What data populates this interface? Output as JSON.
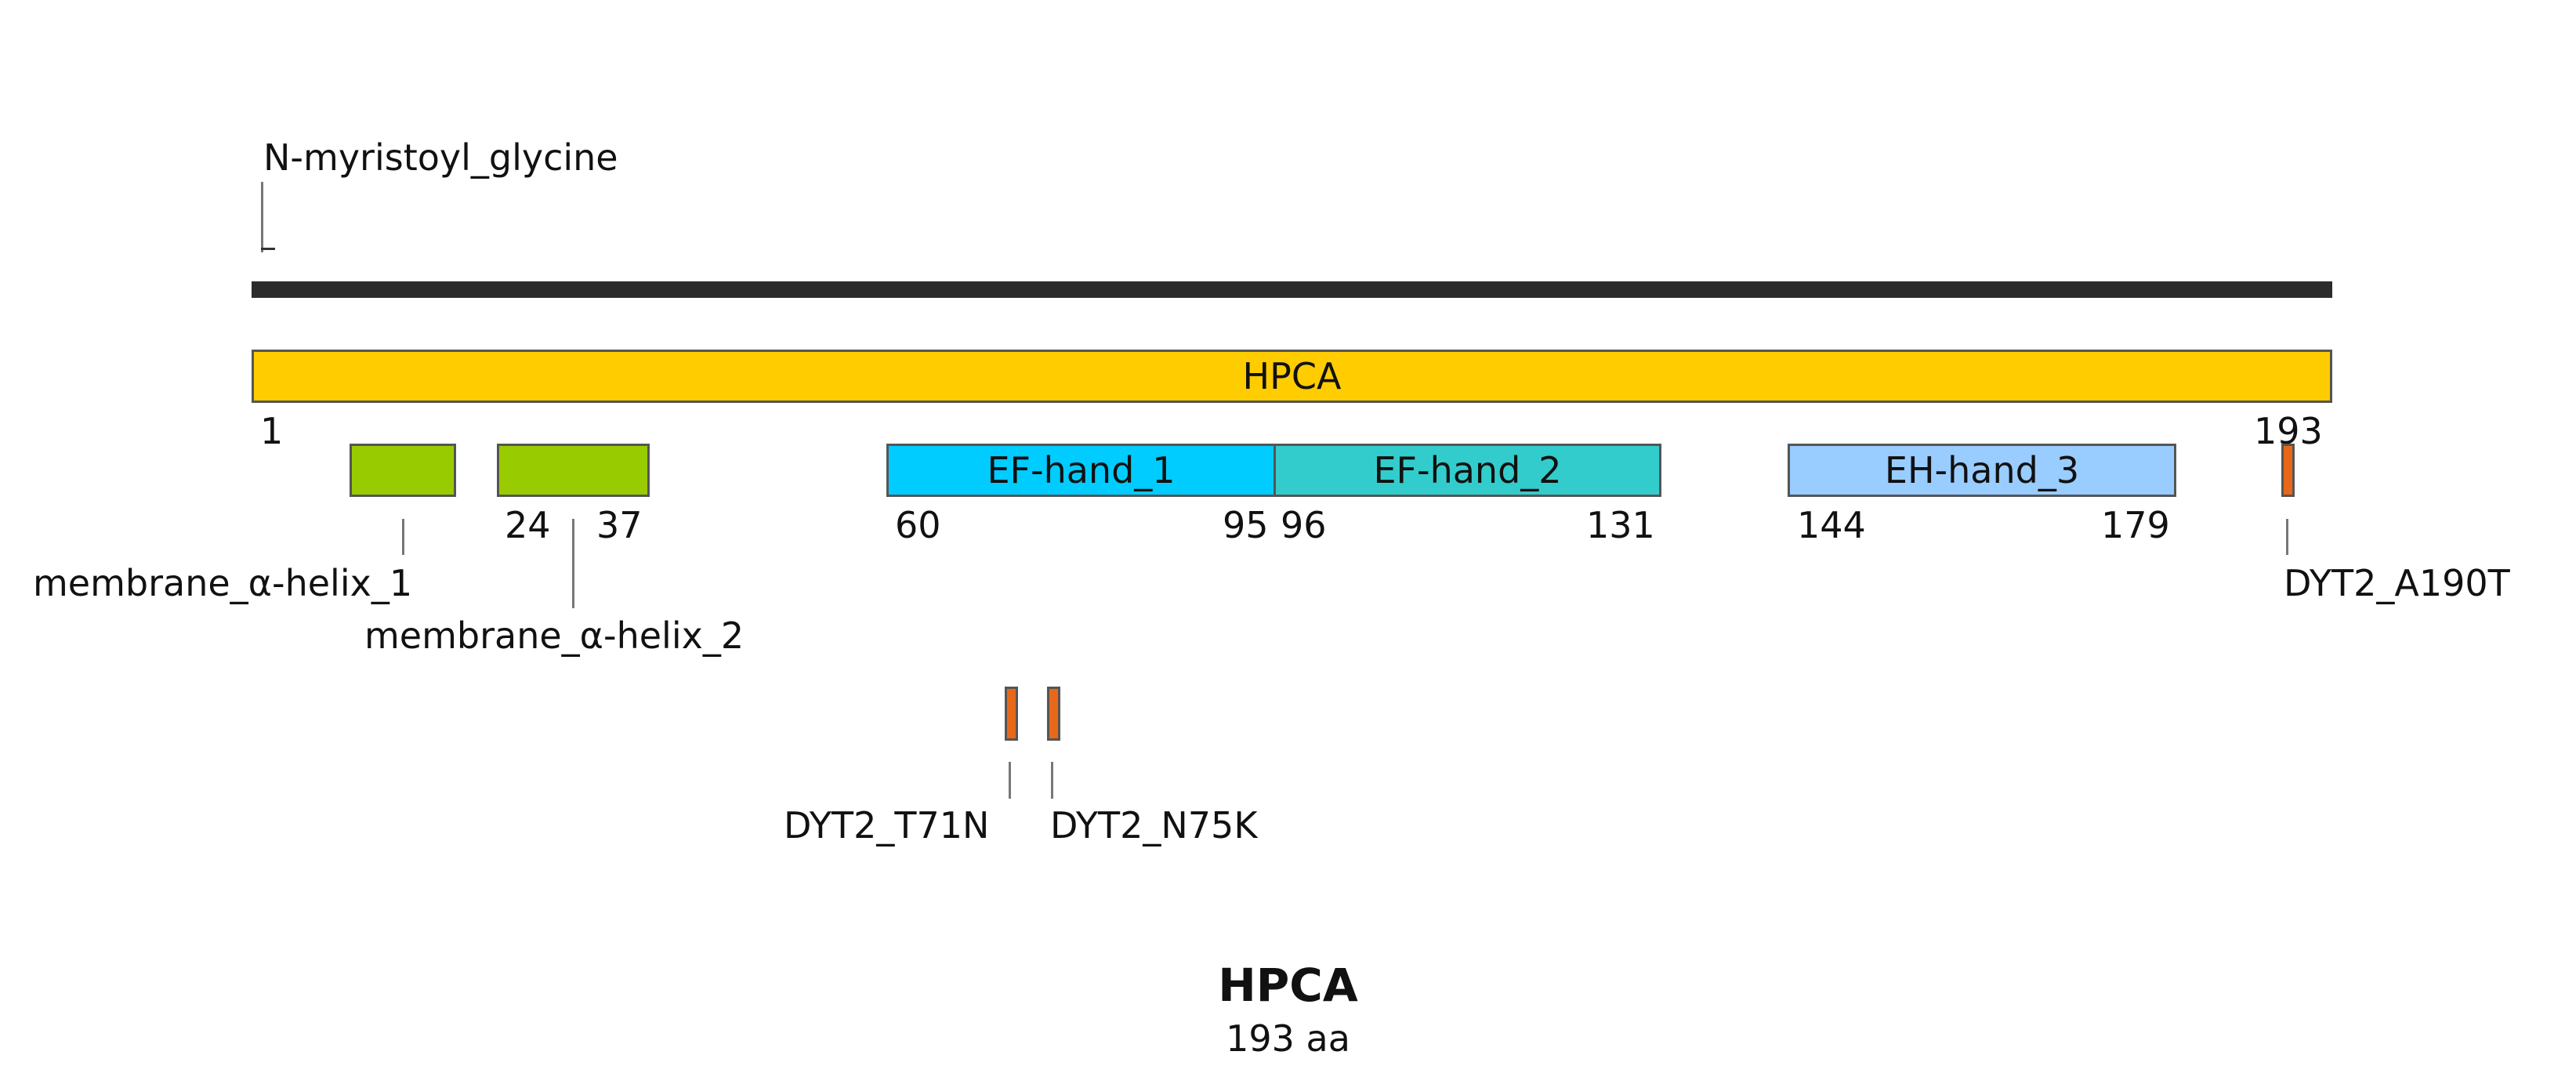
{
  "protein": {
    "name": "HPCA",
    "length_label": "193 aa",
    "start_label": "1",
    "end_label": "193"
  },
  "backbone_color": "#2b2b2b",
  "main_bar": {
    "label": "HPCA",
    "color": "#ffcc00"
  },
  "modification": {
    "label": "N-myristoyl_glycine"
  },
  "helices": [
    {
      "label": "membrane_α-helix_1",
      "color": "#99cc00"
    },
    {
      "label": "membrane_α-helix_2",
      "color": "#99cc00",
      "start": "24",
      "end": "37"
    }
  ],
  "domains": [
    {
      "label": "EF-hand_1",
      "color": "#00ccff",
      "start": "60",
      "end": "95"
    },
    {
      "label": "EF-hand_2",
      "color": "#33cccc",
      "start": "96",
      "end": "131"
    },
    {
      "label": "EH-hand_3",
      "color": "#99ccff",
      "start": "144",
      "end": "179"
    }
  ],
  "mutations": [
    {
      "label": "DYT2_A190T",
      "color": "#e8681a"
    },
    {
      "label": "DYT2_T71N",
      "color": "#e8681a"
    },
    {
      "label": "DYT2_N75K",
      "color": "#e8681a"
    }
  ]
}
